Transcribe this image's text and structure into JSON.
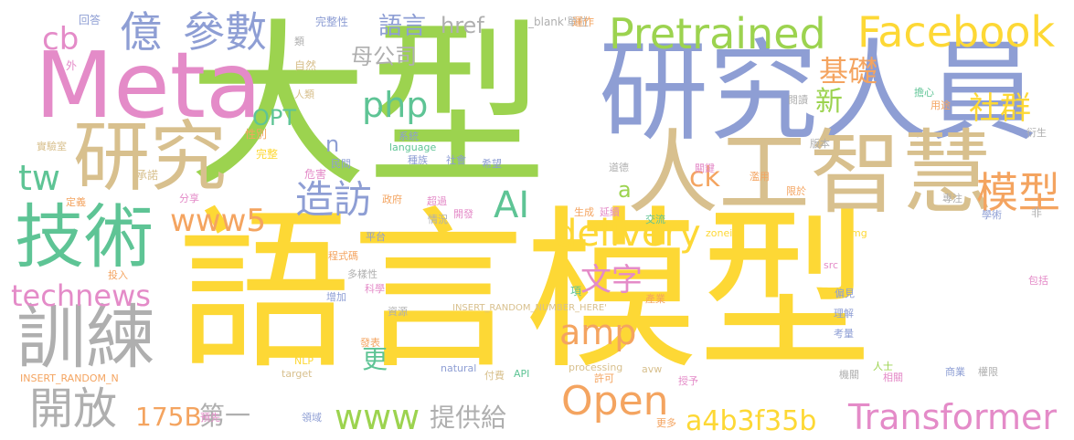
{
  "palette": {
    "yellow": "#FDD835",
    "green": "#9CD34F",
    "blue": "#8E9ED4",
    "pink": "#E48BC8",
    "tan": "#D8C08E",
    "teal": "#5EC495",
    "orange": "#F4A460",
    "gray": "#AFAFAF"
  },
  "words": [
    {
      "text": "語言模型",
      "color": "yellow"
    },
    {
      "text": "大型",
      "color": "green"
    },
    {
      "text": "研究人員",
      "color": "blue"
    },
    {
      "text": "Meta",
      "color": "pink"
    },
    {
      "text": "人工智慧",
      "color": "tan"
    },
    {
      "text": "技術",
      "color": "teal"
    },
    {
      "text": "研究",
      "color": "tan"
    },
    {
      "text": "訓練",
      "color": "gray"
    },
    {
      "text": "Facebook",
      "color": "yellow"
    },
    {
      "text": "Pretrained",
      "color": "green"
    },
    {
      "text": "億",
      "color": "blue"
    },
    {
      "text": "參數",
      "color": "blue"
    },
    {
      "text": "Open",
      "color": "orange"
    },
    {
      "text": "Transformer",
      "color": "pink"
    },
    {
      "text": "technews",
      "color": "pink"
    },
    {
      "text": "開放",
      "color": "gray"
    },
    {
      "text": "模型",
      "color": "orange"
    },
    {
      "text": "delivery",
      "color": "yellow"
    },
    {
      "text": "AI",
      "color": "teal"
    },
    {
      "text": "www5",
      "color": "orange"
    },
    {
      "text": "造訪",
      "color": "blue"
    },
    {
      "text": "a4b3f35b",
      "color": "yellow"
    },
    {
      "text": "www",
      "color": "green"
    },
    {
      "text": "php",
      "color": "teal"
    },
    {
      "text": "cb",
      "color": "pink"
    },
    {
      "text": "tw",
      "color": "teal"
    },
    {
      "text": "amp",
      "color": "orange"
    },
    {
      "text": "文字",
      "color": "pink"
    },
    {
      "text": "基礎",
      "color": "orange"
    },
    {
      "text": "社群",
      "color": "yellow"
    },
    {
      "text": "新",
      "color": "green"
    },
    {
      "text": "175B",
      "color": "orange"
    },
    {
      "text": "第一",
      "color": "gray"
    },
    {
      "text": "提供給",
      "color": "gray"
    },
    {
      "text": "href",
      "color": "gray"
    },
    {
      "text": "語言",
      "color": "blue"
    },
    {
      "text": "母公司",
      "color": "gray"
    },
    {
      "text": "ck",
      "color": "orange"
    },
    {
      "text": "OPT",
      "color": "teal"
    },
    {
      "text": "n",
      "color": "blue"
    },
    {
      "text": "a",
      "color": "green"
    },
    {
      "text": "更",
      "color": "teal"
    },
    {
      "text": "完整性",
      "color": "blue"
    },
    {
      "text": "_blank'單位",
      "color": "gray"
    },
    {
      "text": "運作",
      "color": "orange"
    },
    {
      "text": "回答",
      "color": "blue"
    },
    {
      "text": "類",
      "color": "gray"
    },
    {
      "text": "外",
      "color": "pink"
    },
    {
      "text": "自然",
      "color": "tan"
    },
    {
      "text": "人類",
      "color": "tan"
    },
    {
      "text": "性別",
      "color": "orange"
    },
    {
      "text": "完整",
      "color": "yellow"
    },
    {
      "text": "實驗室",
      "color": "tan"
    },
    {
      "text": "承諾",
      "color": "tan"
    },
    {
      "text": "危害",
      "color": "pink"
    },
    {
      "text": "分享",
      "color": "pink"
    },
    {
      "text": "定義",
      "color": "orange"
    },
    {
      "text": "民間",
      "color": "blue"
    },
    {
      "text": "系統",
      "color": "blue"
    },
    {
      "text": "language",
      "color": "teal"
    },
    {
      "text": "種族",
      "color": "blue"
    },
    {
      "text": "社會",
      "color": "blue"
    },
    {
      "text": "希望",
      "color": "blue"
    },
    {
      "text": "政府",
      "color": "orange"
    },
    {
      "text": "超過",
      "color": "pink"
    },
    {
      "text": "開發",
      "color": "pink"
    },
    {
      "text": "情況",
      "color": "gray"
    },
    {
      "text": "生成",
      "color": "orange"
    },
    {
      "text": "延續",
      "color": "pink"
    },
    {
      "text": "平台",
      "color": "blue"
    },
    {
      "text": "程式碼",
      "color": "orange"
    },
    {
      "text": "多樣性",
      "color": "gray"
    },
    {
      "text": "科學",
      "color": "pink"
    },
    {
      "text": "增加",
      "color": "blue"
    },
    {
      "text": "資源",
      "color": "gray"
    },
    {
      "text": "項",
      "color": "teal"
    },
    {
      "text": "INSERT_RANDOM_NUMBER_HERE'",
      "color": "tan"
    },
    {
      "text": "INSERT_RANDOM_N",
      "color": "orange"
    },
    {
      "text": "發表",
      "color": "orange"
    },
    {
      "text": "NLP",
      "color": "yellow"
    },
    {
      "text": "target",
      "color": "tan"
    },
    {
      "text": "natural",
      "color": "blue"
    },
    {
      "text": "付費",
      "color": "tan"
    },
    {
      "text": "API",
      "color": "teal"
    },
    {
      "text": "processing",
      "color": "tan"
    },
    {
      "text": "許可",
      "color": "orange"
    },
    {
      "text": "avw",
      "color": "tan"
    },
    {
      "text": "預先",
      "color": "pink"
    },
    {
      "text": "領域",
      "color": "blue"
    },
    {
      "text": "更多",
      "color": "orange"
    },
    {
      "text": "投入",
      "color": "orange"
    },
    {
      "text": "zoneid",
      "color": "yellow"
    },
    {
      "text": "src",
      "color": "pink"
    },
    {
      "text": "img",
      "color": "yellow"
    },
    {
      "text": "交流",
      "color": "teal"
    },
    {
      "text": "產業",
      "color": "orange"
    },
    {
      "text": "偏見",
      "color": "blue"
    },
    {
      "text": "理解",
      "color": "blue"
    },
    {
      "text": "考量",
      "color": "blue"
    },
    {
      "text": "授予",
      "color": "pink"
    },
    {
      "text": "機關",
      "color": "gray"
    },
    {
      "text": "人士",
      "color": "green"
    },
    {
      "text": "相關",
      "color": "pink"
    },
    {
      "text": "商業",
      "color": "blue"
    },
    {
      "text": "權限",
      "color": "gray"
    },
    {
      "text": "包括",
      "color": "pink"
    },
    {
      "text": "學術",
      "color": "blue"
    },
    {
      "text": "非",
      "color": "gray"
    },
    {
      "text": "專注",
      "color": "gray"
    },
    {
      "text": "限於",
      "color": "orange"
    },
    {
      "text": "濫用",
      "color": "orange"
    },
    {
      "text": "關鍵",
      "color": "pink"
    },
    {
      "text": "道德",
      "color": "gray"
    },
    {
      "text": "版本",
      "color": "gray"
    },
    {
      "text": "閱讀",
      "color": "gray"
    },
    {
      "text": "擔心",
      "color": "teal"
    },
    {
      "text": "用途",
      "color": "orange"
    },
    {
      "text": "衍生",
      "color": "gray"
    }
  ]
}
